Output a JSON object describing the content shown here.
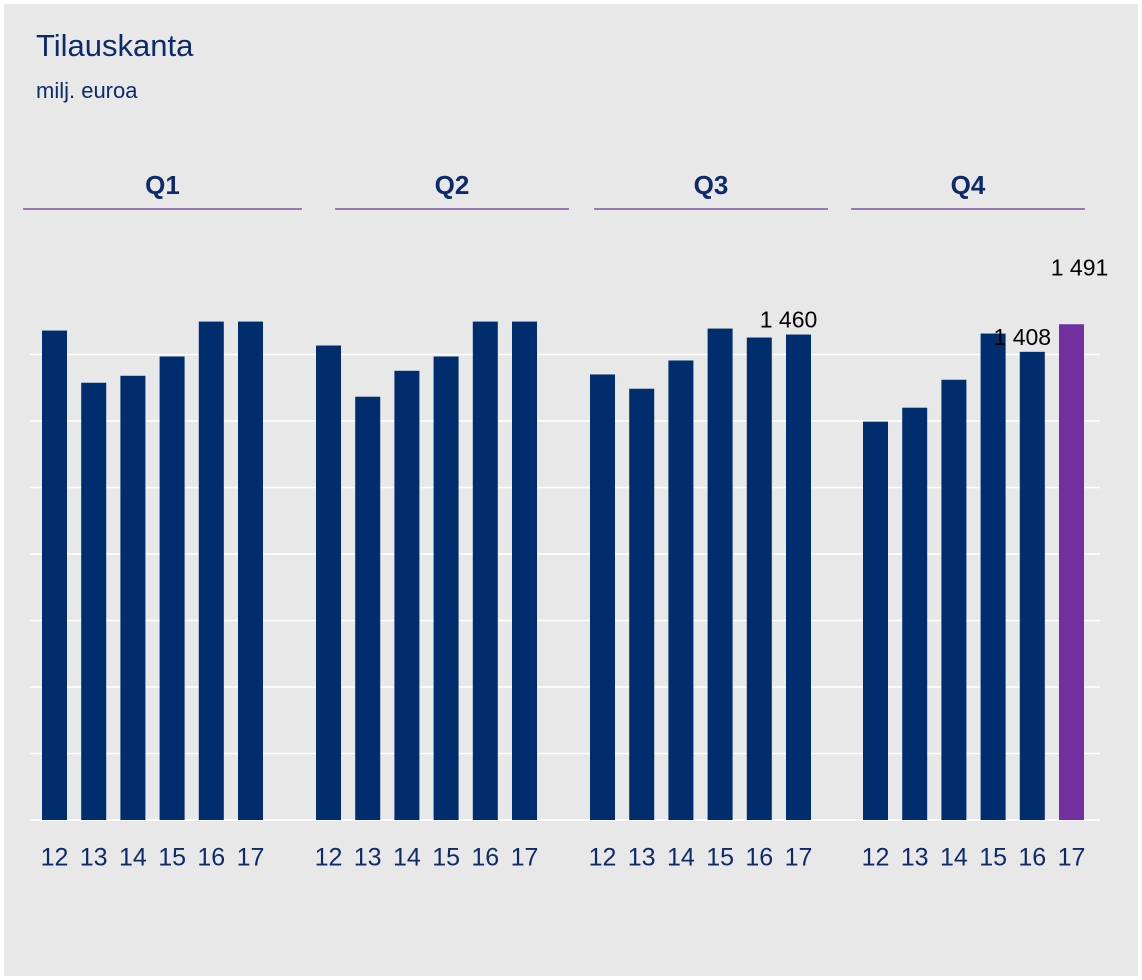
{
  "chart_data": {
    "type": "bar",
    "title": "Tilauskanta",
    "subtitle": "milj. euroa",
    "categories": [
      "12",
      "13",
      "14",
      "15",
      "16",
      "17"
    ],
    "ylim": [
      0,
      1600
    ],
    "yticks": [
      0,
      200,
      400,
      600,
      800,
      1000,
      1200,
      1400
    ],
    "grid": true,
    "series": [
      {
        "name": "Q1",
        "colors": [
          "#002d6e",
          "#002d6e",
          "#002d6e",
          "#002d6e",
          "#002d6e",
          "#002d6e"
        ],
        "values": [
          1472,
          1315,
          1336,
          1394,
          1499,
          1499
        ],
        "value_labels": [
          null,
          null,
          null,
          null,
          null,
          null
        ]
      },
      {
        "name": "Q2",
        "colors": [
          "#002d6e",
          "#002d6e",
          "#002d6e",
          "#002d6e",
          "#002d6e",
          "#002d6e"
        ],
        "values": [
          1427,
          1273,
          1351,
          1394,
          1499,
          1499
        ],
        "value_labels": [
          null,
          null,
          null,
          null,
          null,
          null
        ]
      },
      {
        "name": "Q3",
        "colors": [
          "#002d6e",
          "#002d6e",
          "#002d6e",
          "#002d6e",
          "#002d6e",
          "#002d6e"
        ],
        "values": [
          1340,
          1297,
          1382,
          1478,
          1451,
          1460
        ],
        "value_labels": [
          null,
          null,
          null,
          null,
          null,
          "1 460"
        ]
      },
      {
        "name": "Q4",
        "colors": [
          "#002d6e",
          "#002d6e",
          "#002d6e",
          "#002d6e",
          "#002d6e",
          "#7030a0"
        ],
        "values": [
          1198,
          1240,
          1324,
          1463,
          1408,
          1491
        ],
        "value_labels": [
          null,
          null,
          null,
          null,
          "1 408",
          "1 491"
        ]
      }
    ]
  }
}
